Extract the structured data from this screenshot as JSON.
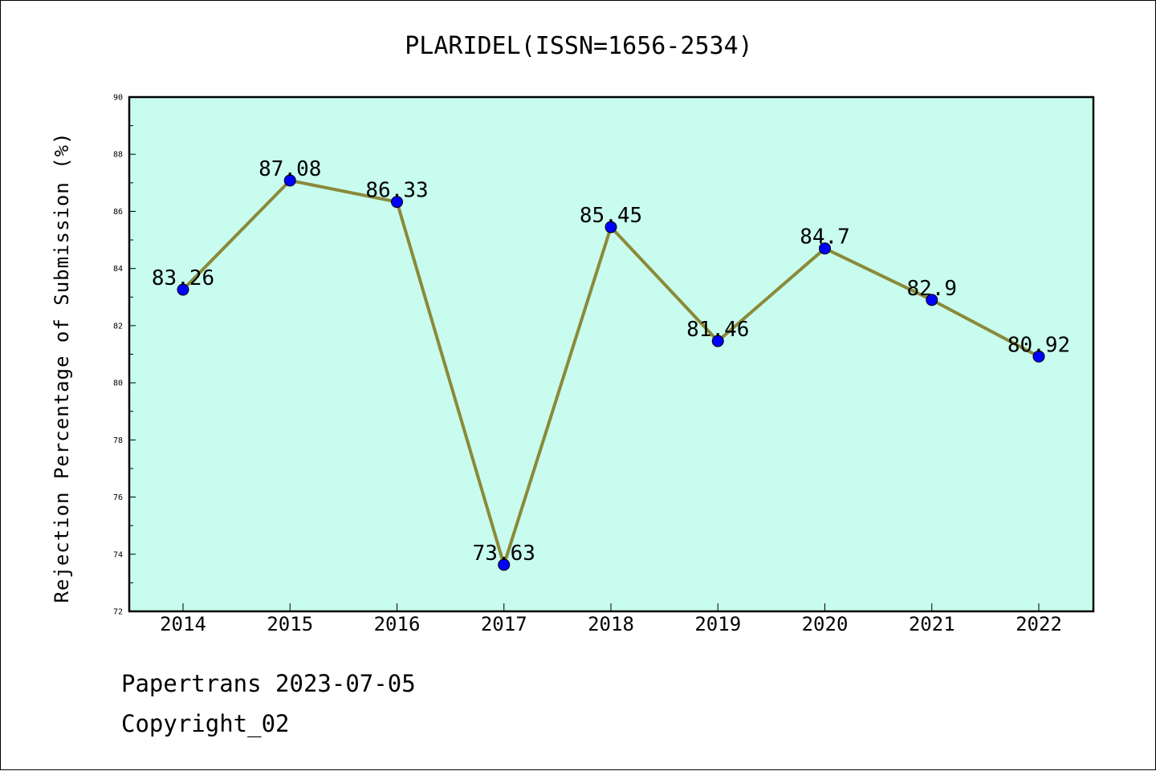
{
  "chart_data": {
    "type": "line",
    "title": "PLARIDEL(ISSN=1656-2534)",
    "xlabel": "",
    "ylabel": "Rejection Percentage of Submission (%)",
    "categories": [
      "2014",
      "2015",
      "2016",
      "2017",
      "2018",
      "2019",
      "2020",
      "2021",
      "2022"
    ],
    "values": [
      83.26,
      87.08,
      86.33,
      73.63,
      85.45,
      81.46,
      84.7,
      82.9,
      80.92
    ],
    "data_labels": [
      "83.26",
      "87.08",
      "86.33",
      "73.63",
      "85.45",
      "81.46",
      "84.7",
      "82.9",
      "80.92"
    ],
    "ylim": [
      72,
      90
    ],
    "yticks": [
      "72",
      "74",
      "76",
      "78",
      "80",
      "82",
      "84",
      "86",
      "88",
      "90"
    ],
    "grid": false,
    "legend": "none",
    "colors": {
      "plot_background": "#c8fcee",
      "line": "#8b8a3a",
      "marker": "#0000ff"
    }
  },
  "footer": {
    "line1": "Papertrans 2023-07-05",
    "line2": "Copyright_02"
  }
}
